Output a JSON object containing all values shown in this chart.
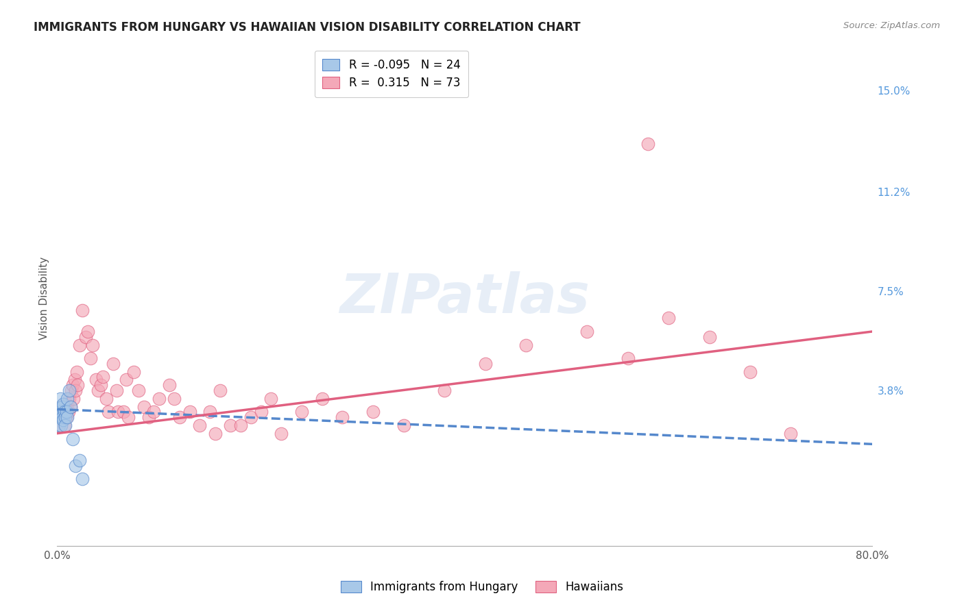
{
  "title": "IMMIGRANTS FROM HUNGARY VS HAWAIIAN VISION DISABILITY CORRELATION CHART",
  "source": "Source: ZipAtlas.com",
  "ylabel": "Vision Disability",
  "xlim": [
    0.0,
    0.8
  ],
  "ylim": [
    -0.02,
    0.165
  ],
  "right_yticks": [
    0.038,
    0.075,
    0.112,
    0.15
  ],
  "right_yticklabels": [
    "3.8%",
    "7.5%",
    "11.2%",
    "15.0%"
  ],
  "xticks": [
    0.0,
    0.1,
    0.2,
    0.3,
    0.4,
    0.5,
    0.6,
    0.7,
    0.8
  ],
  "xticklabels": [
    "0.0%",
    "",
    "",
    "",
    "",
    "",
    "",
    "",
    "80.0%"
  ],
  "R_blue": -0.095,
  "N_blue": 24,
  "R_pink": 0.315,
  "N_pink": 73,
  "blue_color": "#a8c8e8",
  "pink_color": "#f4a8b8",
  "blue_line_color": "#5588cc",
  "pink_line_color": "#e06080",
  "watermark": "ZIPatlas",
  "grid_color": "#dddddd",
  "blue_scatter_x": [
    0.001,
    0.002,
    0.002,
    0.003,
    0.003,
    0.003,
    0.004,
    0.004,
    0.005,
    0.005,
    0.006,
    0.006,
    0.007,
    0.008,
    0.008,
    0.009,
    0.01,
    0.01,
    0.012,
    0.013,
    0.015,
    0.018,
    0.022,
    0.025
  ],
  "blue_scatter_y": [
    0.028,
    0.03,
    0.025,
    0.032,
    0.028,
    0.035,
    0.03,
    0.025,
    0.028,
    0.032,
    0.027,
    0.033,
    0.03,
    0.028,
    0.025,
    0.03,
    0.028,
    0.035,
    0.038,
    0.032,
    0.02,
    0.01,
    0.012,
    0.005
  ],
  "pink_scatter_x": [
    0.001,
    0.002,
    0.003,
    0.004,
    0.005,
    0.006,
    0.007,
    0.008,
    0.009,
    0.01,
    0.011,
    0.012,
    0.013,
    0.014,
    0.015,
    0.016,
    0.017,
    0.018,
    0.019,
    0.02,
    0.022,
    0.025,
    0.028,
    0.03,
    0.033,
    0.035,
    0.038,
    0.04,
    0.043,
    0.045,
    0.048,
    0.05,
    0.055,
    0.058,
    0.06,
    0.065,
    0.068,
    0.07,
    0.075,
    0.08,
    0.085,
    0.09,
    0.095,
    0.1,
    0.11,
    0.115,
    0.12,
    0.13,
    0.14,
    0.15,
    0.155,
    0.16,
    0.17,
    0.18,
    0.19,
    0.2,
    0.21,
    0.22,
    0.24,
    0.26,
    0.28,
    0.31,
    0.34,
    0.38,
    0.42,
    0.46,
    0.52,
    0.56,
    0.6,
    0.64,
    0.68,
    0.72,
    0.58
  ],
  "pink_scatter_y": [
    0.025,
    0.028,
    0.03,
    0.032,
    0.03,
    0.028,
    0.025,
    0.032,
    0.028,
    0.033,
    0.03,
    0.035,
    0.032,
    0.038,
    0.04,
    0.035,
    0.042,
    0.038,
    0.045,
    0.04,
    0.055,
    0.068,
    0.058,
    0.06,
    0.05,
    0.055,
    0.042,
    0.038,
    0.04,
    0.043,
    0.035,
    0.03,
    0.048,
    0.038,
    0.03,
    0.03,
    0.042,
    0.028,
    0.045,
    0.038,
    0.032,
    0.028,
    0.03,
    0.035,
    0.04,
    0.035,
    0.028,
    0.03,
    0.025,
    0.03,
    0.022,
    0.038,
    0.025,
    0.025,
    0.028,
    0.03,
    0.035,
    0.022,
    0.03,
    0.035,
    0.028,
    0.03,
    0.025,
    0.038,
    0.048,
    0.055,
    0.06,
    0.05,
    0.065,
    0.058,
    0.045,
    0.022,
    0.13
  ]
}
